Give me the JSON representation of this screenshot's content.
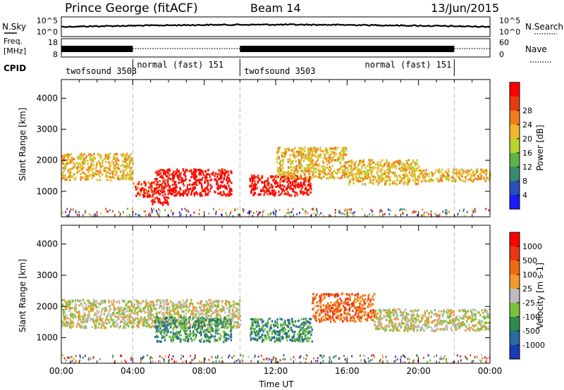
{
  "header": {
    "radar": "Prince George (fitACF)",
    "beam": "Beam 14",
    "date": "13/Jun/2015"
  },
  "strip_nsky": {
    "label": "N.Sky",
    "right_label": "N.Search",
    "ticks_left": [
      "10^5",
      "10^0"
    ],
    "ticks_right": [
      "10^5",
      "10^0"
    ]
  },
  "strip_freq": {
    "label_line1": "Freq.",
    "label_line2": "[MHz]",
    "ticks_left": [
      "18",
      "8"
    ],
    "right_label": "Nave",
    "ticks_right": [
      "60",
      "0"
    ]
  },
  "cpid": {
    "label": "CPID",
    "segments": [
      {
        "name": "twofsound 3503",
        "start_hour": 0,
        "end_hour": 4
      },
      {
        "name": "normal (fast) 151",
        "start_hour": 4,
        "end_hour": 10
      },
      {
        "name": "twofsound 3503",
        "start_hour": 10,
        "end_hour": 22
      },
      {
        "name": "normal (fast) 151",
        "start_hour": 22,
        "end_hour": 24
      }
    ]
  },
  "chart_data": [
    {
      "type": "heatmap",
      "name": "power",
      "ylabel": "Slant Range [km]",
      "yticks": [
        "1000",
        "2000",
        "3000",
        "4000"
      ],
      "ylim": [
        180,
        4600
      ],
      "xlim": [
        0,
        24
      ],
      "colorbar": {
        "label": "Power [dB]",
        "ticks": [
          "4",
          "8",
          "12",
          "16",
          "20",
          "24",
          "28"
        ],
        "colors": [
          "#1a1aff",
          "#2a4fb8",
          "#3a8a6e",
          "#5fb048",
          "#b8d22e",
          "#f2b72a",
          "#f07e1a",
          "#e83b12",
          "#ff0000"
        ]
      },
      "bands": [
        {
          "x0": 0.0,
          "x1": 4.0,
          "y0": 1350,
          "y1": 2200,
          "level": 5
        },
        {
          "x0": 4.0,
          "x1": 5.2,
          "y0": 800,
          "y1": 1300,
          "level": 7
        },
        {
          "x0": 5.0,
          "x1": 6.0,
          "y0": 550,
          "y1": 800,
          "level": 8
        },
        {
          "x0": 5.2,
          "x1": 9.5,
          "y0": 850,
          "y1": 1700,
          "level": 8
        },
        {
          "x0": 10.5,
          "x1": 14.0,
          "y0": 850,
          "y1": 1500,
          "level": 8
        },
        {
          "x0": 12.0,
          "x1": 16.0,
          "y0": 1400,
          "y1": 2400,
          "level": 5
        },
        {
          "x0": 16.0,
          "x1": 20.0,
          "y0": 1200,
          "y1": 2000,
          "level": 5
        },
        {
          "x0": 20.0,
          "x1": 24.0,
          "y0": 1300,
          "y1": 1700,
          "level": 5
        }
      ]
    },
    {
      "type": "heatmap",
      "name": "velocity",
      "ylabel": "Slant Range [km]",
      "yticks": [
        "1000",
        "2000",
        "3000",
        "4000"
      ],
      "ylim": [
        180,
        4600
      ],
      "xlim": [
        0,
        24
      ],
      "xticks": [
        "00:00",
        "04:00",
        "08:00",
        "12:00",
        "16:00",
        "20:00",
        "00:00"
      ],
      "xlabel": "Time UT",
      "colorbar": {
        "label": "Velocity [m s-1]",
        "ticks": [
          "1000",
          "500",
          "100",
          "25",
          "-25",
          "-100",
          "-500",
          "-1000"
        ],
        "colors": [
          "#1a3ab8",
          "#2a6a9e",
          "#2e8a4e",
          "#7ac23a",
          "#bdbdbd",
          "#f29a2a",
          "#f06a12",
          "#e83512",
          "#ff0000"
        ]
      },
      "bands": [
        {
          "x0": 0.0,
          "x1": 10.0,
          "y0": 1300,
          "y1": 2200,
          "level": 4
        },
        {
          "x0": 5.2,
          "x1": 9.5,
          "y0": 850,
          "y1": 1650,
          "level": 2
        },
        {
          "x0": 10.5,
          "x1": 14.0,
          "y0": 850,
          "y1": 1600,
          "level": 2
        },
        {
          "x0": 14.0,
          "x1": 17.5,
          "y0": 1500,
          "y1": 2400,
          "level": 6
        },
        {
          "x0": 17.5,
          "x1": 24.0,
          "y0": 1200,
          "y1": 1900,
          "level": 4
        }
      ]
    }
  ]
}
